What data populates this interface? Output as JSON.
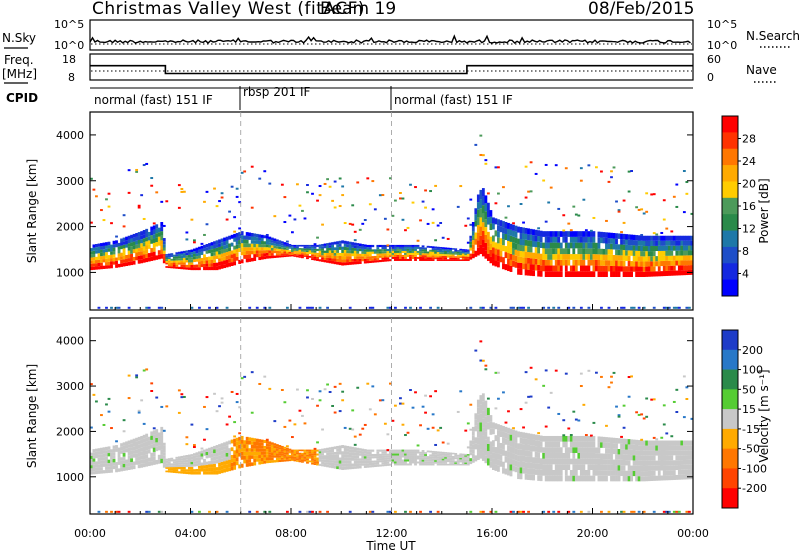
{
  "header": {
    "station": "Christmas Valley West (fitACF)",
    "beam": "Beam 19",
    "date": "08/Feb/2015"
  },
  "panels": {
    "nsky": {
      "label": "N.Sky",
      "right_label": "N.Search",
      "left_ticks": [
        "10^5",
        "10^0"
      ],
      "right_ticks": [
        "10^5",
        "10^0"
      ]
    },
    "freq": {
      "label_line1": "Freq.",
      "label_line2": "[MHz]",
      "right_label": "Nave",
      "left_ticks": [
        "18",
        "8"
      ],
      "right_ticks": [
        "60",
        "0"
      ]
    },
    "cpid": {
      "label": "CPID",
      "segments": [
        "normal (fast) 151 IF",
        "rbsp 201 IF",
        "normal (fast) 151 IF"
      ]
    }
  },
  "axes": {
    "xlabel": "Time UT",
    "x_ticks": [
      "00:00",
      "04:00",
      "08:00",
      "12:00",
      "16:00",
      "20:00",
      "00:00"
    ],
    "ylabel": "Slant Range [km]",
    "y_ticks": [
      "1000",
      "2000",
      "3000",
      "4000"
    ]
  },
  "colorbars": {
    "power": {
      "label": "Power [dB]",
      "ticks": [
        "28",
        "24",
        "20",
        "16",
        "12",
        "8",
        "4"
      ],
      "colors": [
        "#ff0000",
        "#ff3300",
        "#ff7700",
        "#ffaa00",
        "#ffcc00",
        "#4c9a5a",
        "#2a8a4a",
        "#1e78a8",
        "#1e4ec8",
        "#1428e0",
        "#0000ff"
      ]
    },
    "velocity": {
      "label": "Velocity [m s⁻¹]",
      "ticks": [
        "200",
        "100",
        "50",
        "15",
        "-15",
        "-50",
        "-100",
        "-200"
      ],
      "colors": [
        "#1e3cc8",
        "#2878c8",
        "#2a8a4a",
        "#55cc33",
        "#c8c8c8",
        "#ffaa00",
        "#ff7700",
        "#ff4400",
        "#ff0000"
      ]
    }
  },
  "chart_data": {
    "type": "heatmap",
    "x_range_hours": [
      0,
      24
    ],
    "y_range_km": [
      180,
      4500
    ],
    "cpid_switch_hours": [
      6,
      12
    ],
    "nsky_ylim": [
      1,
      100000
    ],
    "freq_ylim_mhz": [
      8,
      18
    ],
    "freq_steps": [
      {
        "from_h": 0,
        "to_h": 3,
        "mhz": 13.5
      },
      {
        "from_h": 3,
        "to_h": 15,
        "mhz": 10.5
      },
      {
        "from_h": 15,
        "to_h": 24,
        "mhz": 13.5
      }
    ],
    "power_band_lower_km": [
      [
        0,
        1050
      ],
      [
        1,
        1100
      ],
      [
        2,
        1200
      ],
      [
        2.8,
        1300
      ],
      [
        3,
        1100
      ],
      [
        4,
        1050
      ],
      [
        5,
        1050
      ],
      [
        6,
        1200
      ],
      [
        7,
        1300
      ],
      [
        8,
        1350
      ],
      [
        9,
        1250
      ],
      [
        10,
        1150
      ],
      [
        11,
        1200
      ],
      [
        12,
        1250
      ],
      [
        13,
        1250
      ],
      [
        14,
        1250
      ],
      [
        15,
        1250
      ],
      [
        15.5,
        1400
      ],
      [
        16,
        1150
      ],
      [
        17,
        950
      ],
      [
        18,
        900
      ],
      [
        20,
        900
      ],
      [
        22,
        900
      ],
      [
        24,
        950
      ]
    ],
    "power_band_upper_km": [
      [
        0,
        1600
      ],
      [
        1,
        1700
      ],
      [
        2,
        1900
      ],
      [
        2.8,
        2100
      ],
      [
        3,
        1400
      ],
      [
        4,
        1500
      ],
      [
        5,
        1700
      ],
      [
        6,
        1900
      ],
      [
        7,
        1800
      ],
      [
        8,
        1600
      ],
      [
        9,
        1600
      ],
      [
        10,
        1700
      ],
      [
        11,
        1600
      ],
      [
        12,
        1600
      ],
      [
        13,
        1600
      ],
      [
        14,
        1550
      ],
      [
        15,
        1500
      ],
      [
        15.5,
        3000
      ],
      [
        16,
        2200
      ],
      [
        17,
        2000
      ],
      [
        18,
        1900
      ],
      [
        20,
        1900
      ],
      [
        22,
        1800
      ],
      [
        24,
        1800
      ]
    ]
  }
}
